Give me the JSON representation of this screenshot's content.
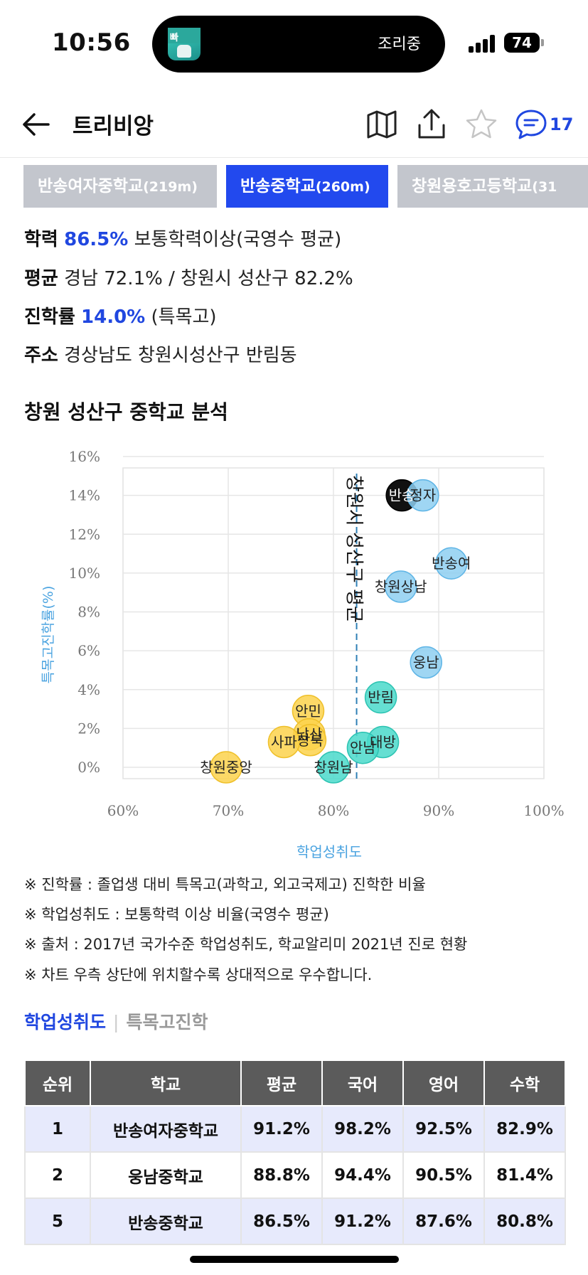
{
  "status": {
    "time": "10:56",
    "island_label": "조리중",
    "app_icon_text": "빠",
    "battery": "74"
  },
  "header": {
    "title": "트리비앙",
    "comment_count": "17"
  },
  "school_tabs": [
    {
      "name": "반송여자중학교",
      "dist": "(219m)",
      "active": false
    },
    {
      "name": "반송중학교",
      "dist": "(260m)",
      "active": true
    },
    {
      "name": "창원용호고등학교",
      "dist": "(31",
      "active": false
    }
  ],
  "info": {
    "achievement": {
      "label": "학력",
      "value": "86.5%",
      "desc": "보통학력이상(국영수 평균)"
    },
    "average": {
      "label": "평균",
      "desc": "경남 72.1% / 창원시 성산구 82.2%"
    },
    "advancement": {
      "label": "진학률",
      "value": "14.0%",
      "desc": "(특목고)"
    },
    "address": {
      "label": "주소",
      "desc": "경상남도 창원시성산구 반림동"
    }
  },
  "section_title": "창원 성산구 중학교 분석",
  "chart_data": {
    "type": "scatter",
    "xlabel": "학업성취도",
    "ylabel": "특목고진학률(%)",
    "xlim": [
      60,
      100
    ],
    "ylim": [
      0,
      16
    ],
    "x_ticks": [
      "60%",
      "70%",
      "80%",
      "90%",
      "100%"
    ],
    "y_ticks": [
      "16%",
      "14%",
      "12%",
      "10%",
      "8%",
      "6%",
      "4%",
      "2%",
      "0%"
    ],
    "reference_line": {
      "x": 82.2,
      "label": "창원시 성산구 평균"
    },
    "grid": true,
    "colors": {
      "blue": "#8ecff1",
      "teal": "#4ad9ca",
      "yellow": "#fbd24c",
      "black": "#111111"
    },
    "points": [
      {
        "label": "반송",
        "x": 86.5,
        "y": 14.0,
        "group": "black"
      },
      {
        "label": "정자",
        "x": 88.5,
        "y": 14.0,
        "group": "blue"
      },
      {
        "label": "반송여",
        "x": 91.2,
        "y": 10.5,
        "group": "blue"
      },
      {
        "label": "창원상남",
        "x": 86.4,
        "y": 9.3,
        "group": "blue"
      },
      {
        "label": "웅남",
        "x": 88.8,
        "y": 5.4,
        "group": "blue"
      },
      {
        "label": "반림",
        "x": 84.5,
        "y": 3.6,
        "group": "teal"
      },
      {
        "label": "대방",
        "x": 84.7,
        "y": 1.3,
        "group": "teal"
      },
      {
        "label": "안남",
        "x": 82.8,
        "y": 1.0,
        "group": "teal"
      },
      {
        "label": "창원남",
        "x": 80.0,
        "y": 0.0,
        "group": "teal"
      },
      {
        "label": "안민",
        "x": 77.6,
        "y": 2.9,
        "group": "yellow"
      },
      {
        "label": "남산",
        "x": 77.7,
        "y": 1.7,
        "group": "yellow"
      },
      {
        "label": "상북",
        "x": 77.8,
        "y": 1.4,
        "group": "yellow"
      },
      {
        "label": "사파",
        "x": 75.3,
        "y": 1.3,
        "group": "yellow"
      },
      {
        "label": "창원중앙",
        "x": 69.8,
        "y": 0.0,
        "group": "yellow"
      }
    ]
  },
  "notes": [
    "※ 진학률 : 졸업생 대비 특목고(과학고, 외고국제고) 진학한 비율",
    "※ 학업성취도 : 보통학력 이상 비율(국영수 평균)",
    "※ 출처 : 2017년 국가수준 학업성취도, 학교알리미 2021년 진로 현황",
    "※ 차트 우측 상단에 위치할수록 상대적으로 우수합니다."
  ],
  "sub_tabs": {
    "active": "학업성취도",
    "inactive": "특목고진학"
  },
  "table": {
    "headers": [
      "순위",
      "학교",
      "평균",
      "국어",
      "영어",
      "수학"
    ],
    "rows": [
      [
        "1",
        "반송여자중학교",
        "91.2%",
        "98.2%",
        "92.5%",
        "82.9%"
      ],
      [
        "2",
        "웅남중학교",
        "88.8%",
        "94.4%",
        "90.5%",
        "81.4%"
      ],
      [
        "5",
        "반송중학교",
        "86.5%",
        "91.2%",
        "87.6%",
        "80.8%"
      ]
    ]
  }
}
